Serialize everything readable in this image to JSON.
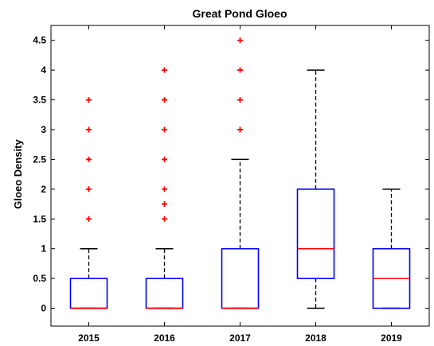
{
  "chart_data": {
    "type": "boxplot",
    "title": "Great Pond Gloeo",
    "xlabel": "",
    "ylabel": "Gloeo Density",
    "ylim": [
      -0.3,
      4.75
    ],
    "yticks": [
      "0",
      "0.5",
      "1",
      "1.5",
      "2",
      "2.5",
      "3",
      "3.5",
      "4",
      "4.5"
    ],
    "ytick_values": [
      0,
      0.5,
      1,
      1.5,
      2,
      2.5,
      3,
      3.5,
      4,
      4.5
    ],
    "categories": [
      "2015",
      "2016",
      "2017",
      "2018",
      "2019"
    ],
    "boxes": [
      {
        "category": "2015",
        "whisker_low": 0,
        "q1": 0,
        "median": 0,
        "q3": 0.5,
        "whisker_high": 1,
        "outliers": [
          1.5,
          2,
          2.5,
          3,
          3.5
        ]
      },
      {
        "category": "2016",
        "whisker_low": 0,
        "q1": 0,
        "median": 0,
        "q3": 0.5,
        "whisker_high": 1,
        "outliers": [
          1.5,
          1.75,
          2,
          2.5,
          3,
          3.5,
          4
        ]
      },
      {
        "category": "2017",
        "whisker_low": 0,
        "q1": 0,
        "median": 0,
        "q3": 1,
        "whisker_high": 2.5,
        "outliers": [
          3,
          3.5,
          4,
          4.5
        ]
      },
      {
        "category": "2018",
        "whisker_low": 0,
        "q1": 0.5,
        "median": 1,
        "q3": 2,
        "whisker_high": 4,
        "outliers": []
      },
      {
        "category": "2019",
        "whisker_low": 0,
        "q1": 0,
        "median": 0.5,
        "q3": 1,
        "whisker_high": 2,
        "outliers": []
      }
    ],
    "colors": {
      "box": "#0000ff",
      "median": "#ff0000",
      "outlier": "#ff0000",
      "whisker": "#000000"
    },
    "grid": false,
    "legend": "none"
  }
}
